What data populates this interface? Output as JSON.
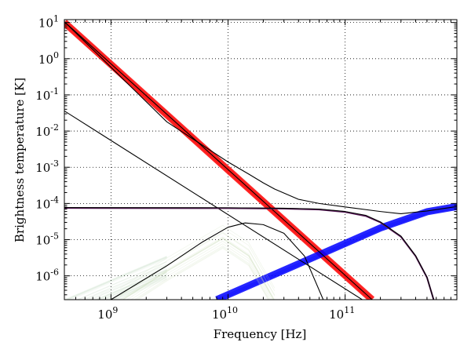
{
  "chart_data": {
    "type": "line",
    "title": "",
    "xlabel": "Frequency [Hz]",
    "ylabel": "Brightness temperature [K]",
    "xscale": "log",
    "yscale": "log",
    "xlim": [
      400000000,
      900000000000
    ],
    "ylim": [
      2.2e-07,
      12
    ],
    "grid": true,
    "grid_style": "dotted",
    "x_ticks": [
      {
        "value": 1000000000,
        "base": "10",
        "exp": "9"
      },
      {
        "value": 10000000000,
        "base": "10",
        "exp": "10"
      },
      {
        "value": 100000000000,
        "base": "10",
        "exp": "11"
      }
    ],
    "y_ticks": [
      {
        "value": 10,
        "base": "10",
        "exp": "1"
      },
      {
        "value": 1,
        "base": "10",
        "exp": "0"
      },
      {
        "value": 0.1,
        "base": "10",
        "exp": "-1"
      },
      {
        "value": 0.01,
        "base": "10",
        "exp": "-2"
      },
      {
        "value": 0.001,
        "base": "10",
        "exp": "-3"
      },
      {
        "value": 0.0001,
        "base": "10",
        "exp": "-4"
      },
      {
        "value": 1e-05,
        "base": "10",
        "exp": "-5"
      },
      {
        "value": 1e-06,
        "base": "10",
        "exp": "-6"
      }
    ],
    "bands": [
      {
        "color": "#ff0000",
        "opacity": 0.09,
        "count": 12,
        "width": 1.6,
        "x": [
          400000000,
          170000000000
        ],
        "y": [
          10,
          2.2e-07
        ],
        "spread_y": 0.09
      },
      {
        "color": "#0000ff",
        "opacity": 0.09,
        "count": 10,
        "width": 1.6,
        "x": [
          8000000000,
          60000000000,
          200000000000,
          500000000000,
          900000000000
        ],
        "y": [
          2.2e-07,
          3.8e-06,
          2.1e-05,
          5.9e-05,
          8.2e-05
        ],
        "spread_y": 0.06
      },
      {
        "color": "#5a9a5a",
        "opacity": 0.06,
        "count": 30,
        "width": 1.2,
        "x": [
          400000000,
          3000000000
        ],
        "y": [
          1e-07,
          1.6e-06
        ],
        "spread_y": 0.35
      },
      {
        "color": "#c9dcb5",
        "opacity": 0.25,
        "count": 14,
        "width": 0.8,
        "x": [
          1200000000,
          3000000000,
          9000000000,
          15000000000,
          25000000000
        ],
        "y": [
          2.2e-07,
          1.5e-06,
          1.2e-05,
          4e-06,
          2.2e-07
        ],
        "spread_y": 0.35
      }
    ],
    "series": [
      {
        "color": "#000000",
        "width": 1.1,
        "x": [
          400000000,
          170000000000
        ],
        "y": [
          10.5,
          2.2e-07
        ]
      },
      {
        "color": "#000000",
        "width": 1.1,
        "x": [
          400000000,
          140000000000
        ],
        "y": [
          0.036,
          2.2e-07
        ]
      },
      {
        "color": "#000000",
        "width": 1.1,
        "x": [
          400000000,
          3000000000,
          10000000000,
          15000000000,
          20000000000,
          25000000000,
          40000000000,
          60000000000,
          100000000000,
          200000000000,
          300000000000,
          500000000000,
          900000000000
        ],
        "y": [
          10.5,
          0.018,
          0.0014,
          0.00065,
          0.00037,
          0.00025,
          0.00013,
          0.0001,
          8e-05,
          6e-05,
          5.2e-05,
          6.2e-05,
          8.2e-05
        ]
      },
      {
        "color": "#000000",
        "width": 1.1,
        "x": [
          1000000000,
          3000000000,
          6000000000,
          10000000000,
          14000000000,
          20000000000,
          30000000000,
          45000000000,
          65000000000
        ],
        "y": [
          2.2e-07,
          1.9e-06,
          8.5e-06,
          2.2e-05,
          2.9e-05,
          2.6e-05,
          1.5e-05,
          3.5e-06,
          2.2e-07
        ]
      },
      {
        "color": "#5a1a5a",
        "width": 2.0,
        "x": [
          400000000,
          10000000000,
          30000000000,
          60000000000,
          100000000000,
          150000000000,
          200000000000,
          300000000000,
          400000000000,
          500000000000,
          570000000000
        ],
        "y": [
          7.5e-05,
          7.4e-05,
          7.2e-05,
          6.8e-05,
          5.8e-05,
          4.5e-05,
          3e-05,
          1.2e-05,
          3.5e-06,
          9e-07,
          2.2e-07
        ]
      },
      {
        "color": "#000000",
        "width": 1.1,
        "x": [
          400000000,
          10000000000,
          30000000000,
          60000000000,
          100000000000,
          150000000000,
          200000000000,
          300000000000,
          400000000000,
          500000000000,
          570000000000
        ],
        "y": [
          7.7e-05,
          7.6e-05,
          7.4e-05,
          7e-05,
          6e-05,
          4.7e-05,
          3.1e-05,
          1.25e-05,
          3.6e-06,
          9.2e-07,
          2.2e-07
        ]
      }
    ]
  }
}
